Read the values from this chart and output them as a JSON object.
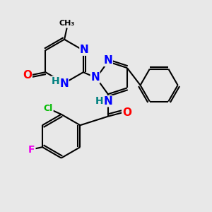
{
  "bg_color": "#e8e8e8",
  "bond_color": "#000000",
  "bond_width": 1.5,
  "atom_colors": {
    "N": "#0000ff",
    "O": "#ff0000",
    "Cl": "#00bb00",
    "F": "#ee00ee",
    "C": "#000000",
    "H": "#008080"
  },
  "font_size": 9
}
